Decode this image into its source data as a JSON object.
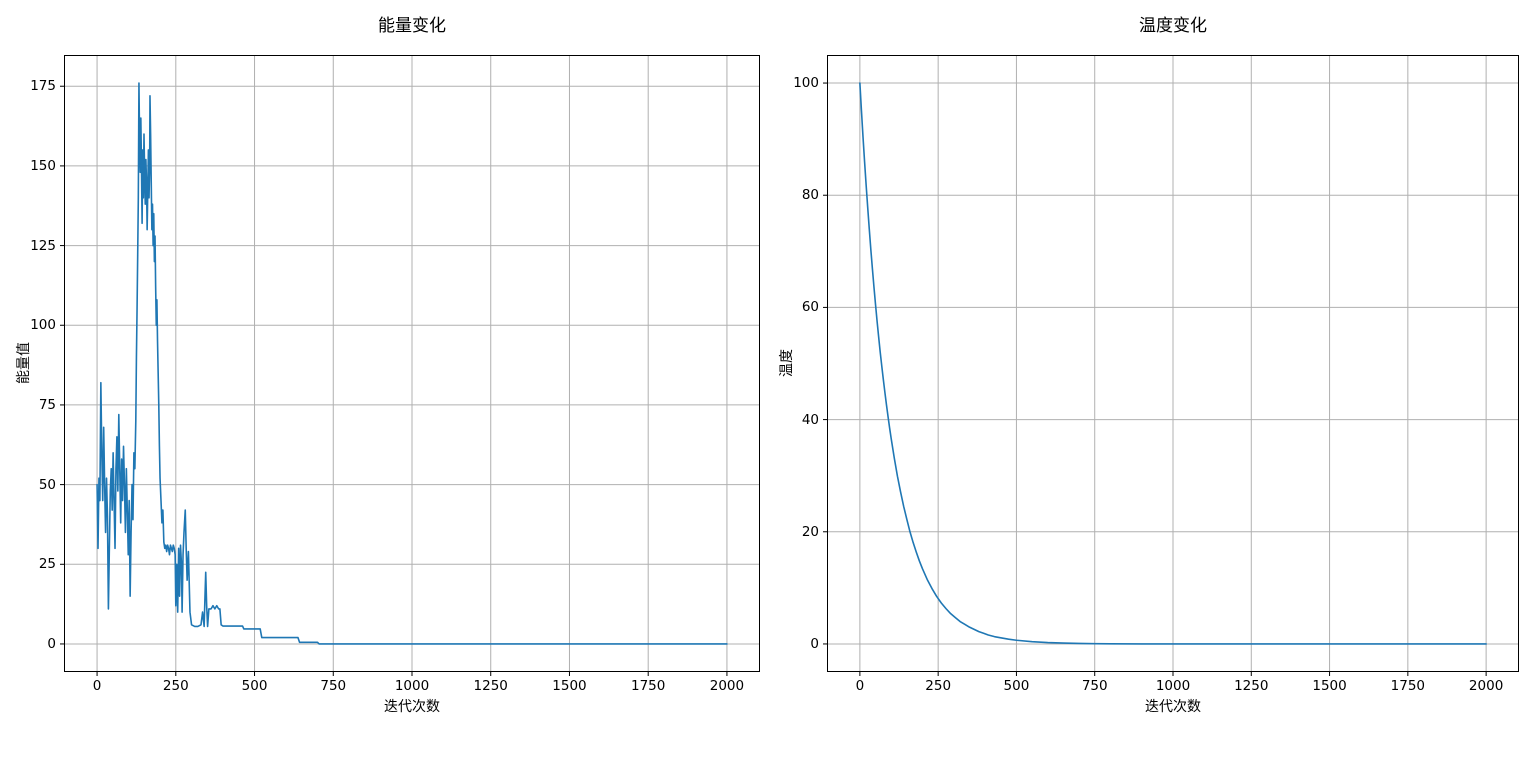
{
  "figure": {
    "background": "#ffffff",
    "text_color": "#000000"
  },
  "chart_data": [
    {
      "type": "line",
      "title": "能量变化",
      "xlabel": "迭代次数",
      "ylabel": "能量值",
      "line_color": "#1f77b4",
      "grid": true,
      "grid_color": "#b0b0b0",
      "spine_color": "#000000",
      "xlim": [
        -105,
        2105
      ],
      "ylim": [
        -8.8,
        184.8
      ],
      "xticks": [
        0,
        250,
        500,
        750,
        1000,
        1250,
        1500,
        1750,
        2000
      ],
      "yticks": [
        0,
        25,
        50,
        75,
        100,
        125,
        150,
        175
      ],
      "legend": null,
      "points": [
        [
          0,
          50
        ],
        [
          3,
          30
        ],
        [
          6,
          52
        ],
        [
          9,
          45
        ],
        [
          12,
          82
        ],
        [
          15,
          60
        ],
        [
          18,
          45
        ],
        [
          21,
          68
        ],
        [
          24,
          50
        ],
        [
          27,
          35
        ],
        [
          30,
          52
        ],
        [
          33,
          40
        ],
        [
          36,
          11
        ],
        [
          39,
          30
        ],
        [
          42,
          48
        ],
        [
          45,
          55
        ],
        [
          48,
          42
        ],
        [
          51,
          60
        ],
        [
          54,
          45
        ],
        [
          57,
          30
        ],
        [
          60,
          55
        ],
        [
          63,
          65
        ],
        [
          66,
          48
        ],
        [
          69,
          72
        ],
        [
          72,
          55
        ],
        [
          75,
          38
        ],
        [
          78,
          58
        ],
        [
          81,
          45
        ],
        [
          84,
          62
        ],
        [
          87,
          50
        ],
        [
          90,
          35
        ],
        [
          93,
          55
        ],
        [
          96,
          42
        ],
        [
          99,
          28
        ],
        [
          102,
          45
        ],
        [
          105,
          15
        ],
        [
          108,
          35
        ],
        [
          111,
          50
        ],
        [
          114,
          39
        ],
        [
          117,
          60
        ],
        [
          120,
          55
        ],
        [
          123,
          70
        ],
        [
          125,
          90
        ],
        [
          127,
          105
        ],
        [
          129,
          122
        ],
        [
          131,
          140
        ],
        [
          133,
          176
        ],
        [
          135,
          158
        ],
        [
          137,
          148
        ],
        [
          139,
          165
        ],
        [
          141,
          150
        ],
        [
          143,
          132
        ],
        [
          145,
          155
        ],
        [
          147,
          140
        ],
        [
          149,
          160
        ],
        [
          151,
          148
        ],
        [
          153,
          138
        ],
        [
          155,
          152
        ],
        [
          157,
          145
        ],
        [
          159,
          130
        ],
        [
          161,
          142
        ],
        [
          163,
          155
        ],
        [
          165,
          140
        ],
        [
          167,
          150
        ],
        [
          168,
          172
        ],
        [
          170,
          160
        ],
        [
          172,
          145
        ],
        [
          174,
          130
        ],
        [
          176,
          138
        ],
        [
          178,
          125
        ],
        [
          180,
          135
        ],
        [
          182,
          120
        ],
        [
          184,
          128
        ],
        [
          186,
          112
        ],
        [
          188,
          100
        ],
        [
          190,
          108
        ],
        [
          192,
          95
        ],
        [
          194,
          85
        ],
        [
          196,
          75
        ],
        [
          198,
          62
        ],
        [
          200,
          52
        ],
        [
          203,
          45
        ],
        [
          206,
          38
        ],
        [
          209,
          42
        ],
        [
          212,
          32
        ],
        [
          215,
          30
        ],
        [
          218,
          31
        ],
        [
          221,
          29
        ],
        [
          224,
          31
        ],
        [
          227,
          30
        ],
        [
          230,
          28
        ],
        [
          233,
          31
        ],
        [
          236,
          30
        ],
        [
          239,
          29
        ],
        [
          242,
          31
        ],
        [
          245,
          30
        ],
        [
          248,
          28
        ],
        [
          250,
          12
        ],
        [
          253,
          25
        ],
        [
          256,
          10
        ],
        [
          259,
          30
        ],
        [
          262,
          15
        ],
        [
          265,
          31
        ],
        [
          268,
          25
        ],
        [
          270,
          10
        ],
        [
          273,
          28
        ],
        [
          276,
          35
        ],
        [
          280,
          42
        ],
        [
          283,
          30
        ],
        [
          286,
          20
        ],
        [
          290,
          29
        ],
        [
          295,
          10
        ],
        [
          300,
          6
        ],
        [
          310,
          5.5
        ],
        [
          320,
          5.5
        ],
        [
          330,
          6
        ],
        [
          335,
          10
        ],
        [
          340,
          5.5
        ],
        [
          343,
          16
        ],
        [
          345,
          22.5
        ],
        [
          348,
          12
        ],
        [
          351,
          5.5
        ],
        [
          355,
          11
        ],
        [
          362,
          11
        ],
        [
          368,
          12
        ],
        [
          374,
          11
        ],
        [
          380,
          12
        ],
        [
          386,
          11
        ],
        [
          390,
          11
        ],
        [
          394,
          6
        ],
        [
          400,
          5.6
        ],
        [
          430,
          5.6
        ],
        [
          462,
          5.6
        ],
        [
          466,
          4.7
        ],
        [
          490,
          4.7
        ],
        [
          518,
          4.7
        ],
        [
          523,
          2
        ],
        [
          560,
          2
        ],
        [
          600,
          2
        ],
        [
          638,
          2
        ],
        [
          643,
          0.5
        ],
        [
          700,
          0.5
        ],
        [
          705,
          0
        ],
        [
          800,
          0
        ],
        [
          900,
          0
        ],
        [
          1000,
          0
        ],
        [
          1100,
          0
        ],
        [
          1200,
          0
        ],
        [
          1300,
          0
        ],
        [
          1400,
          0
        ],
        [
          1500,
          0
        ],
        [
          1600,
          0
        ],
        [
          1700,
          0
        ],
        [
          1800,
          0
        ],
        [
          1900,
          0
        ],
        [
          2000,
          0
        ]
      ]
    },
    {
      "type": "line",
      "title": "温度变化",
      "xlabel": "迭代次数",
      "ylabel": "温度",
      "line_color": "#1f77b4",
      "grid": true,
      "grid_color": "#b0b0b0",
      "spine_color": "#000000",
      "xlim": [
        -105,
        2105
      ],
      "ylim": [
        -5,
        105
      ],
      "xticks": [
        0,
        250,
        500,
        750,
        1000,
        1250,
        1500,
        1750,
        2000
      ],
      "yticks": [
        0,
        20,
        40,
        60,
        80,
        100
      ],
      "legend": null,
      "decay_model": "T = 100 * 0.99^k",
      "points": [
        [
          0,
          100
        ],
        [
          5,
          95.1
        ],
        [
          10,
          90.4
        ],
        [
          15,
          86
        ],
        [
          20,
          81.8
        ],
        [
          25,
          77.8
        ],
        [
          30,
          74
        ],
        [
          35,
          70.3
        ],
        [
          40,
          66.9
        ],
        [
          45,
          63.6
        ],
        [
          50,
          60.5
        ],
        [
          55,
          57.5
        ],
        [
          60,
          54.7
        ],
        [
          65,
          52
        ],
        [
          70,
          49.5
        ],
        [
          75,
          47.1
        ],
        [
          80,
          44.8
        ],
        [
          85,
          42.6
        ],
        [
          90,
          40.5
        ],
        [
          95,
          38.5
        ],
        [
          100,
          36.6
        ],
        [
          110,
          33.1
        ],
        [
          120,
          29.9
        ],
        [
          130,
          27.1
        ],
        [
          140,
          24.5
        ],
        [
          150,
          22.2
        ],
        [
          160,
          20
        ],
        [
          170,
          18.1
        ],
        [
          180,
          16.4
        ],
        [
          190,
          14.8
        ],
        [
          200,
          13.4
        ],
        [
          215,
          11.5
        ],
        [
          230,
          9.9
        ],
        [
          245,
          8.5
        ],
        [
          260,
          7.3
        ],
        [
          275,
          6.3
        ],
        [
          290,
          5.4
        ],
        [
          305,
          4.7
        ],
        [
          320,
          4
        ],
        [
          335,
          3.5
        ],
        [
          350,
          3
        ],
        [
          365,
          2.6
        ],
        [
          380,
          2.2
        ],
        [
          395,
          1.9
        ],
        [
          410,
          1.6
        ],
        [
          430,
          1.3
        ],
        [
          450,
          1.1
        ],
        [
          475,
          0.85
        ],
        [
          500,
          0.66
        ],
        [
          550,
          0.4
        ],
        [
          600,
          0.24
        ],
        [
          650,
          0.15
        ],
        [
          700,
          0.09
        ],
        [
          750,
          0.05
        ],
        [
          800,
          0.03
        ],
        [
          900,
          0.01
        ],
        [
          1000,
          0
        ],
        [
          1100,
          0
        ],
        [
          1200,
          0
        ],
        [
          1300,
          0
        ],
        [
          1400,
          0
        ],
        [
          1500,
          0
        ],
        [
          1600,
          0
        ],
        [
          1700,
          0
        ],
        [
          1800,
          0
        ],
        [
          1900,
          0
        ],
        [
          2000,
          0
        ]
      ]
    }
  ]
}
